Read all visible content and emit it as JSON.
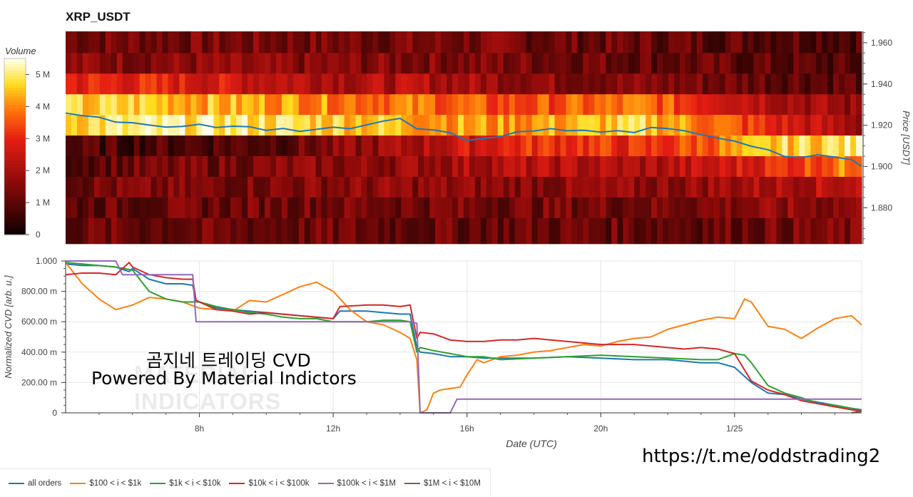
{
  "title": "XRP_USDT",
  "watermark": {
    "line1": "곰지네 트레이딩 CVD",
    "line2": "Powered By Material Indictors",
    "logo_text_1": "MATERIAL",
    "logo_text_2": "INDICATORS"
  },
  "link": "https://t.me/oddstrading2",
  "legend": [
    {
      "name": "all orders",
      "color": "#1f77b4"
    },
    {
      "name": "$100 < i < $1k",
      "color": "#ff7f0e"
    },
    {
      "name": "$1k < i < $10k",
      "color": "#2ca02c"
    },
    {
      "name": "$10k < i < $100k",
      "color": "#d62728"
    },
    {
      "name": "$100k < i < $1M",
      "color": "#9467bd"
    },
    {
      "name": "$1M < i < $10M",
      "color": "#8c564b"
    }
  ],
  "chart_data": [
    {
      "type": "heatmap",
      "title": "XRP_USDT",
      "ylabel": "Price [USDT]",
      "yticks": [
        "1.960",
        "1.940",
        "1.920",
        "1.900",
        "1.880"
      ],
      "ylim": [
        1.8625,
        1.9655
      ],
      "price_bands": [
        1.9655,
        1.955,
        1.945,
        1.935,
        1.925,
        1.915,
        1.905,
        1.895,
        1.885,
        1.875,
        1.8625
      ],
      "band_intensity_profile": [
        [
          0.25,
          0.25,
          0.25,
          0.25,
          0.25,
          0.25,
          0.25,
          0.22,
          0.22,
          0.2,
          0.2,
          0.18
        ],
        [
          0.3,
          0.3,
          0.3,
          0.28,
          0.28,
          0.28,
          0.26,
          0.25,
          0.22,
          0.2,
          0.18,
          0.15
        ],
        [
          0.55,
          0.55,
          0.5,
          0.45,
          0.4,
          0.4,
          0.35,
          0.3,
          0.28,
          0.25,
          0.22,
          0.2
        ],
        [
          0.82,
          0.85,
          0.8,
          0.78,
          0.72,
          0.7,
          0.62,
          0.65,
          0.7,
          0.55,
          0.4,
          0.3
        ],
        [
          0.88,
          0.9,
          0.92,
          0.88,
          0.85,
          0.8,
          0.75,
          0.8,
          0.85,
          0.7,
          0.5,
          0.35
        ],
        [
          0.15,
          0.15,
          0.18,
          0.2,
          0.3,
          0.4,
          0.55,
          0.6,
          0.55,
          0.7,
          0.85,
          0.9
        ],
        [
          0.2,
          0.22,
          0.25,
          0.28,
          0.3,
          0.35,
          0.4,
          0.4,
          0.38,
          0.45,
          0.6,
          0.75
        ],
        [
          0.25,
          0.25,
          0.25,
          0.28,
          0.3,
          0.3,
          0.3,
          0.3,
          0.3,
          0.35,
          0.4,
          0.45
        ],
        [
          0.2,
          0.22,
          0.22,
          0.25,
          0.25,
          0.25,
          0.25,
          0.25,
          0.25,
          0.28,
          0.3,
          0.3
        ],
        [
          0.22,
          0.22,
          0.22,
          0.22,
          0.22,
          0.22,
          0.22,
          0.22,
          0.22,
          0.22,
          0.25,
          0.25
        ]
      ],
      "colorbar": {
        "label": "Volume",
        "ticks": [
          "0",
          "1 M",
          "2 M",
          "3 M",
          "4 M",
          "5 M"
        ],
        "range": [
          0,
          5500000
        ]
      },
      "price_line": {
        "color": "#1f77b4",
        "x_hours": [
          4,
          4.5,
          5,
          5.5,
          6,
          6.5,
          7,
          7.5,
          8,
          8.5,
          9,
          9.5,
          10,
          10.5,
          11,
          11.5,
          12,
          12.5,
          13,
          13.5,
          14,
          14.5,
          15,
          15.5,
          16,
          16.5,
          17,
          17.5,
          18,
          18.5,
          19,
          19.5,
          20,
          20.5,
          21,
          21.5,
          22,
          22.5,
          23,
          23.5,
          24,
          24.5,
          25,
          25.5,
          26,
          26.5,
          27,
          27.5,
          27.8
        ],
        "values": [
          1.926,
          1.925,
          1.924,
          1.922,
          1.921,
          1.92,
          1.919,
          1.919,
          1.92,
          1.919,
          1.92,
          1.919,
          1.917,
          1.918,
          1.917,
          1.918,
          1.919,
          1.918,
          1.92,
          1.922,
          1.923,
          1.918,
          1.918,
          1.917,
          1.913,
          1.914,
          1.914,
          1.917,
          1.917,
          1.918,
          1.917,
          1.918,
          1.917,
          1.917,
          1.917,
          1.919,
          1.918,
          1.917,
          1.916,
          1.914,
          1.912,
          1.91,
          1.908,
          1.905,
          1.904,
          1.906,
          1.905,
          1.903,
          1.9
        ]
      }
    },
    {
      "type": "line",
      "xlabel": "Date (UTC)",
      "ylabel": "Normalized CVD [arb. u.]",
      "xlim": [
        4,
        27.8
      ],
      "xticks": [
        {
          "hour": 8,
          "label": "8h"
        },
        {
          "hour": 12,
          "label": "12h"
        },
        {
          "hour": 16,
          "label": "16h"
        },
        {
          "hour": 20,
          "label": "20h"
        },
        {
          "hour": 24,
          "label": "1/25"
        }
      ],
      "ylim": [
        0,
        1
      ],
      "yticks": [
        {
          "value": 0,
          "label": "0"
        },
        {
          "value": 0.2,
          "label": "200.00 m"
        },
        {
          "value": 0.4,
          "label": "400.00 m"
        },
        {
          "value": 0.6,
          "label": "600.00 m"
        },
        {
          "value": 0.8,
          "label": "800.00 m"
        },
        {
          "value": 1.0,
          "label": "1.000"
        }
      ],
      "series": [
        {
          "name": "all orders",
          "color": "#1f77b4",
          "x": [
            4,
            4.5,
            5,
            5.5,
            5.9,
            6,
            6.5,
            7,
            7.5,
            7.8,
            7.9,
            8.5,
            9,
            10,
            11,
            12,
            12.2,
            13,
            13.5,
            14,
            14.3,
            14.5,
            14.6,
            15,
            15.5,
            16,
            16.5,
            17,
            18,
            19,
            20,
            21,
            22,
            23,
            23.5,
            24,
            24.5,
            25,
            25.5,
            26,
            26.5,
            27,
            27.5,
            27.8
          ],
          "values": [
            0.98,
            0.97,
            0.97,
            0.96,
            0.93,
            0.95,
            0.88,
            0.85,
            0.85,
            0.84,
            0.74,
            0.69,
            0.68,
            0.66,
            0.64,
            0.62,
            0.67,
            0.67,
            0.66,
            0.65,
            0.65,
            0.43,
            0.4,
            0.39,
            0.37,
            0.37,
            0.36,
            0.36,
            0.36,
            0.37,
            0.36,
            0.35,
            0.35,
            0.33,
            0.33,
            0.3,
            0.2,
            0.13,
            0.12,
            0.09,
            0.07,
            0.05,
            0.03,
            0.02
          ]
        },
        {
          "name": "$100 < i < $1k",
          "color": "#ff7f0e",
          "x": [
            4,
            4.5,
            5,
            5.5,
            6,
            6.5,
            7,
            7.5,
            8,
            8.5,
            9,
            9.5,
            10,
            10.5,
            11,
            11.5,
            12,
            12.5,
            13,
            13.5,
            14,
            14.3,
            14.5,
            14.6,
            14.8,
            15,
            15.2,
            15.5,
            15.8,
            16,
            16.3,
            16.5,
            17,
            17.5,
            18,
            18.5,
            19,
            19.5,
            20,
            20.5,
            21,
            21.5,
            22,
            22.5,
            23,
            23.5,
            24,
            24.3,
            24.5,
            25,
            25.5,
            26,
            26.5,
            27,
            27.5,
            27.8
          ],
          "values": [
            0.99,
            0.85,
            0.75,
            0.68,
            0.71,
            0.76,
            0.75,
            0.73,
            0.69,
            0.68,
            0.67,
            0.74,
            0.73,
            0.78,
            0.83,
            0.86,
            0.8,
            0.68,
            0.6,
            0.58,
            0.53,
            0.49,
            0.35,
            0.0,
            0.02,
            0.13,
            0.15,
            0.16,
            0.17,
            0.25,
            0.35,
            0.33,
            0.37,
            0.38,
            0.4,
            0.41,
            0.43,
            0.45,
            0.44,
            0.47,
            0.49,
            0.5,
            0.55,
            0.58,
            0.61,
            0.63,
            0.62,
            0.75,
            0.73,
            0.57,
            0.55,
            0.49,
            0.56,
            0.62,
            0.64,
            0.58
          ]
        },
        {
          "name": "$1k < i < $10k",
          "color": "#2ca02c",
          "x": [
            4,
            4.5,
            5,
            5.5,
            6,
            6.5,
            7,
            7.5,
            8,
            8.5,
            9,
            9.5,
            10,
            10.5,
            11,
            11.5,
            12,
            12.5,
            13,
            13.5,
            14,
            14.3,
            14.5,
            14.6,
            15,
            15.5,
            16,
            16.5,
            17,
            18,
            19,
            20,
            21,
            22,
            23,
            23.5,
            24,
            24.3,
            24.5,
            25,
            25.5,
            26,
            26.5,
            27,
            27.5,
            27.8
          ],
          "values": [
            0.99,
            0.98,
            0.97,
            0.96,
            0.94,
            0.8,
            0.75,
            0.73,
            0.73,
            0.7,
            0.68,
            0.66,
            0.65,
            0.63,
            0.62,
            0.62,
            0.6,
            0.6,
            0.6,
            0.61,
            0.61,
            0.6,
            0.4,
            0.43,
            0.41,
            0.39,
            0.37,
            0.37,
            0.35,
            0.36,
            0.37,
            0.38,
            0.37,
            0.36,
            0.35,
            0.35,
            0.39,
            0.38,
            0.33,
            0.18,
            0.13,
            0.1,
            0.06,
            0.05,
            0.03,
            0.01
          ]
        },
        {
          "name": "$10k < i < $100k",
          "color": "#d62728",
          "x": [
            4,
            4.5,
            5,
            5.5,
            5.9,
            6,
            6.5,
            7,
            7.5,
            7.8,
            7.9,
            8.5,
            9,
            9.5,
            10,
            11,
            12,
            12.2,
            13,
            13.5,
            14,
            14.3,
            14.5,
            14.6,
            15,
            15.5,
            16,
            16.5,
            17,
            17.5,
            18,
            19,
            20,
            21,
            22,
            22.5,
            23,
            23.5,
            24,
            24.5,
            25,
            25.5,
            26,
            26.5,
            27,
            27.5,
            27.8
          ],
          "values": [
            0.91,
            0.92,
            0.92,
            0.91,
            0.99,
            0.96,
            0.91,
            0.89,
            0.88,
            0.88,
            0.74,
            0.68,
            0.67,
            0.65,
            0.66,
            0.64,
            0.62,
            0.7,
            0.71,
            0.71,
            0.7,
            0.71,
            0.49,
            0.53,
            0.52,
            0.48,
            0.47,
            0.47,
            0.48,
            0.48,
            0.49,
            0.47,
            0.45,
            0.45,
            0.43,
            0.42,
            0.43,
            0.42,
            0.39,
            0.21,
            0.15,
            0.12,
            0.08,
            0.06,
            0.04,
            0.02,
            0.01
          ]
        },
        {
          "name": "$100k < i < $1M",
          "color": "#9467bd",
          "x": [
            4,
            5.5,
            5.7,
            7.8,
            7.9,
            14.3,
            14.5,
            14.6,
            15.5,
            15.7,
            27.8
          ],
          "values": [
            1.0,
            1.0,
            0.91,
            0.91,
            0.6,
            0.6,
            0.59,
            0.0,
            0.0,
            0.09,
            0.09
          ]
        },
        {
          "name": "$1M < i < $10M",
          "color": "#8c564b",
          "x": [
            27.5,
            27.8
          ],
          "values": [
            0.0,
            0.01
          ]
        }
      ]
    }
  ]
}
